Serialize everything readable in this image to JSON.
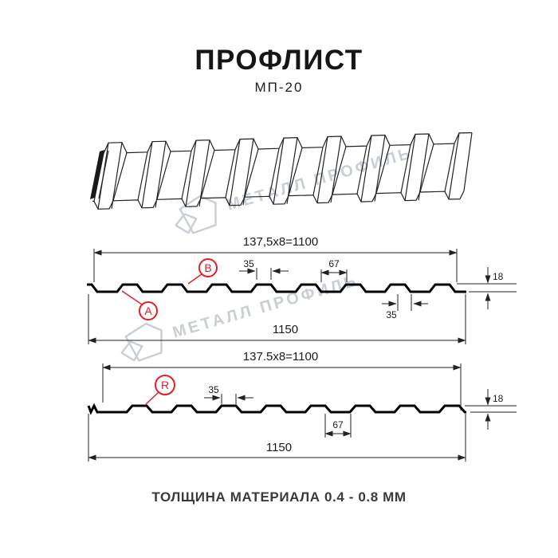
{
  "header": {
    "title": "ПРОФЛИСТ",
    "subtitle": "МП-20"
  },
  "watermark": {
    "text": "МЕТАЛЛ ПРОФИЛЬ"
  },
  "profile1": {
    "pitch_dim": "137,5x8=1100",
    "label_a": "A",
    "label_b": "B",
    "crest_width_dim": "35",
    "valley_width_dim": "67",
    "height_dim": "18",
    "crest_width_bottom_dim": "35",
    "total_width_dim": "1150"
  },
  "profile2": {
    "pitch_dim": "137.5x8=1100",
    "label_r": "R",
    "crest_width_dim": "35",
    "valley_width_dim": "67",
    "height_dim": "18",
    "total_width_dim": "1150"
  },
  "footer": {
    "thickness_note": "ТОЛЩИНА МАТЕРИАЛА 0.4 - 0.8 ММ"
  },
  "colors": {
    "accent_red": "#e31e24",
    "watermark": "#c9ced6",
    "line": "#1a1a1a"
  }
}
